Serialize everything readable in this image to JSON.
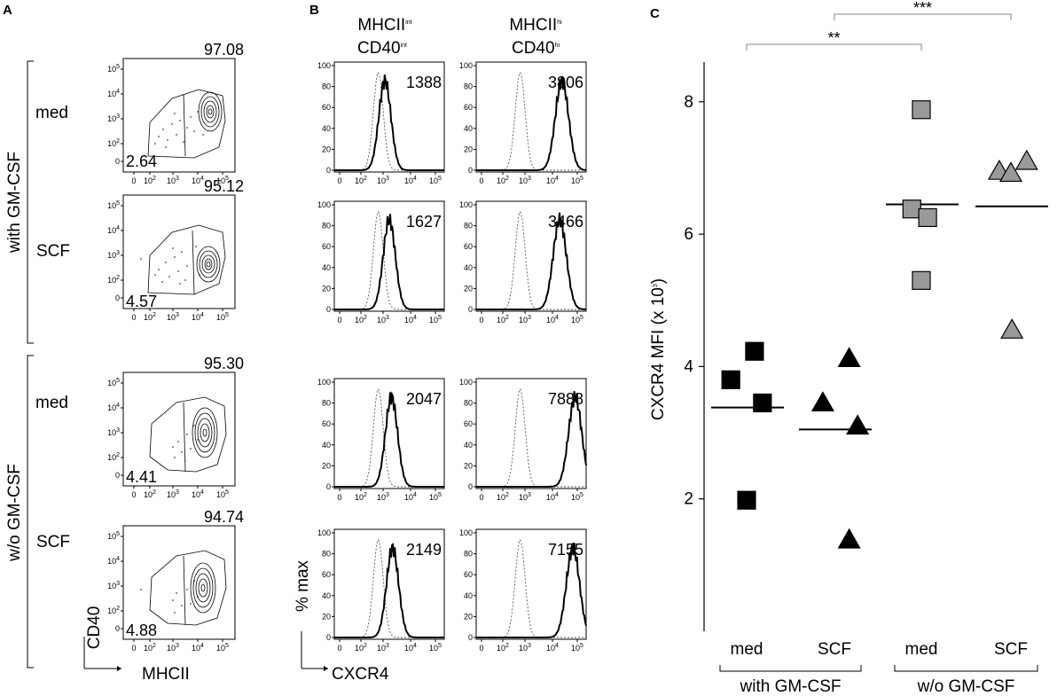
{
  "panel_labels": {
    "a": "A",
    "b": "B",
    "c": "C"
  },
  "panel_a": {
    "group_with": "with GM-CSF",
    "group_without": "w/o GM-CSF",
    "x_axis_label": "MHCII",
    "y_axis_label": "CD40",
    "tick_labels": [
      "0",
      "10",
      "10",
      "10",
      "10"
    ],
    "tick_exponents": [
      "",
      "2",
      "3",
      "4",
      "5"
    ],
    "plots": [
      {
        "condition": "med",
        "hi_pct": "97.08",
        "lo_pct": "2.64"
      },
      {
        "condition": "SCF",
        "hi_pct": "95.12",
        "lo_pct": "4.57"
      },
      {
        "condition": "med",
        "hi_pct": "95.30",
        "lo_pct": "4.41"
      },
      {
        "condition": "SCF",
        "hi_pct": "94.74",
        "lo_pct": "4.88"
      }
    ]
  },
  "panel_b": {
    "col1_line1": "MHCII",
    "col1_line1_sup": "int",
    "col1_line2": "CD40",
    "col1_line2_sup": "int",
    "col2_line1": "MHCII",
    "col2_line1_sup": "hi",
    "col2_line2": "CD40",
    "col2_line2_sup": "hi",
    "x_axis_label": "CXCR4",
    "y_axis_label": "% max",
    "y_ticks": [
      "0",
      "20",
      "40",
      "60",
      "80",
      "100"
    ],
    "x_ticks": [
      "0",
      "10",
      "10",
      "10",
      "10"
    ],
    "x_tick_exponents": [
      "",
      "2",
      "3",
      "4",
      "5"
    ],
    "mfi_int": [
      "1388",
      "1627",
      "2047",
      "2149"
    ],
    "mfi_hi": [
      "3806",
      "3466",
      "7888",
      "7155"
    ]
  },
  "chart_data": {
    "type": "scatter",
    "ylabel": "CXCR4 MFI (x 10",
    "ylabel_sup": "3",
    "ylabel_close": ")",
    "ylim": [
      0,
      8.6
    ],
    "yticks": [
      2,
      4,
      6,
      8
    ],
    "ytick_labels": [
      "2",
      "4",
      "6",
      "8"
    ],
    "categories": [
      "med",
      "SCF",
      "med",
      "SCF"
    ],
    "groups": [
      {
        "label": "with GM-CSF",
        "categories": [
          0,
          1
        ]
      },
      {
        "label": "w/o GM-CSF",
        "categories": [
          2,
          3
        ]
      }
    ],
    "series": [
      {
        "name": "with GM-CSF med",
        "category": 0,
        "marker": "square",
        "color": "#000000",
        "values": [
          4.23,
          3.8,
          3.45,
          1.98
        ],
        "jitter": [
          0.15,
          -0.3,
          0.3,
          0.0
        ],
        "mean": 3.38
      },
      {
        "name": "with GM-CSF SCF",
        "category": 1,
        "marker": "triangle",
        "color": "#000000",
        "values": [
          4.12,
          3.45,
          3.1,
          1.38
        ],
        "jitter": [
          0.28,
          -0.22,
          0.44,
          0.28
        ],
        "mean": 3.05
      },
      {
        "name": "w/o GM-CSF med",
        "category": 2,
        "marker": "square",
        "color": "#999999",
        "values": [
          7.88,
          6.38,
          6.25,
          5.3
        ],
        "jitter": [
          0.0,
          -0.18,
          0.12,
          0.0
        ],
        "mean": 6.45
      },
      {
        "name": "w/o GM-CSF SCF",
        "category": 3,
        "marker": "triangle",
        "color": "#999999",
        "values": [
          6.95,
          6.92,
          7.1,
          4.55
        ],
        "jitter": [
          -0.22,
          0.0,
          0.3,
          0.02
        ],
        "mean": 6.42
      }
    ],
    "significance": [
      {
        "from": 0,
        "to": 2,
        "label": "**"
      },
      {
        "from": 1,
        "to": 3,
        "label": "***"
      }
    ]
  }
}
